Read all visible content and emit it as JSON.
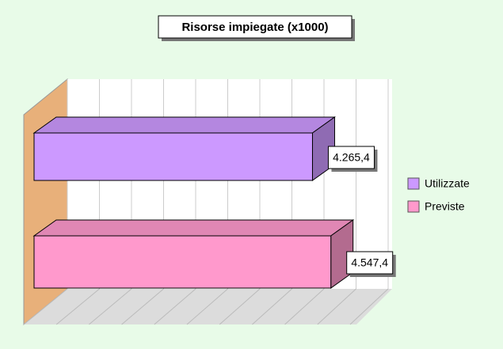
{
  "chart_data": {
    "type": "bar3d",
    "orientation": "horizontal",
    "title": "Risorse impiegate (x1000)",
    "categories": [
      null
    ],
    "series": [
      {
        "name": "Utilizzate",
        "color": "#cc99ff",
        "values": [
          4265.4
        ],
        "value_labels": [
          "4.265,4"
        ]
      },
      {
        "name": "Previste",
        "color": "#ff99cc",
        "values": [
          4547.4
        ],
        "value_labels": [
          "4.547,4"
        ]
      }
    ],
    "xlim": [
      0,
      5000
    ],
    "xticks": [
      0,
      500,
      1000,
      1500,
      2000,
      2500,
      3000,
      3500,
      4000,
      4500,
      5000
    ],
    "grid": true,
    "legend": "right"
  }
}
